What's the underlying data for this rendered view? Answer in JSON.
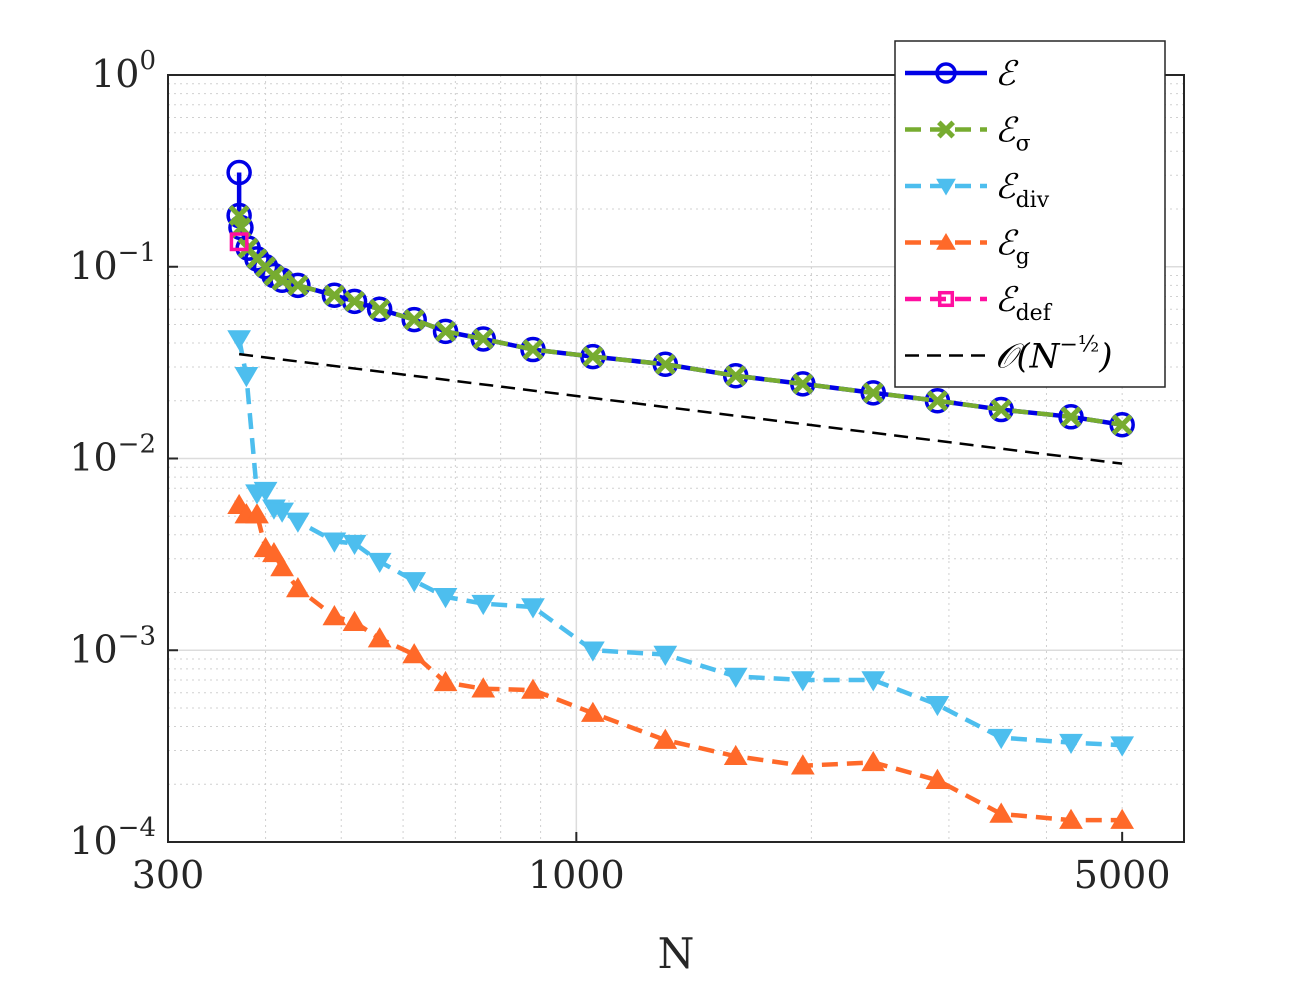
{
  "chart_data": {
    "type": "line",
    "xscale": "log",
    "yscale": "log",
    "xlabel": "N",
    "ylabel": "",
    "xlim": [
      300,
      6000
    ],
    "ylim": [
      0.0001,
      1
    ],
    "grid": true,
    "legend_position": "top-right",
    "x_ticks": [
      {
        "value": 300,
        "label": "300"
      },
      {
        "value": 1000,
        "label": "1000"
      },
      {
        "value": 5000,
        "label": "5000"
      }
    ],
    "y_ticks": [
      {
        "value": 1,
        "base": "10",
        "exp": "0"
      },
      {
        "value": 0.1,
        "base": "10",
        "exp": "−1"
      },
      {
        "value": 0.01,
        "base": "10",
        "exp": "−2"
      },
      {
        "value": 0.001,
        "base": "10",
        "exp": "−3"
      },
      {
        "value": 0.0001,
        "base": "10",
        "exp": "−4"
      }
    ],
    "series": [
      {
        "name": "ℰ",
        "sub": "",
        "color": "#0000e6",
        "dash": "solid",
        "marker": "circle",
        "x": [
          370,
          370,
          372,
          380,
          390,
          400,
          410,
          420,
          440,
          490,
          520,
          560,
          620,
          680,
          760,
          880,
          1050,
          1300,
          1600,
          1950,
          2400,
          2900,
          3500,
          4300,
          5000
        ],
        "y": [
          0.31,
          0.185,
          0.16,
          0.125,
          0.11,
          0.1,
          0.09,
          0.085,
          0.08,
          0.071,
          0.066,
          0.06,
          0.053,
          0.046,
          0.042,
          0.037,
          0.034,
          0.031,
          0.027,
          0.0245,
          0.022,
          0.02,
          0.018,
          0.0165,
          0.015
        ]
      },
      {
        "name": "ℰ",
        "sub": "σ",
        "color": "#77ac30",
        "dash": "dashed",
        "marker": "x",
        "x": [
          370,
          372,
          380,
          390,
          400,
          410,
          420,
          440,
          490,
          520,
          560,
          620,
          680,
          760,
          880,
          1050,
          1300,
          1600,
          1950,
          2400,
          2900,
          3500,
          4300,
          5000
        ],
        "y": [
          0.185,
          0.16,
          0.125,
          0.11,
          0.1,
          0.09,
          0.085,
          0.08,
          0.071,
          0.066,
          0.06,
          0.053,
          0.046,
          0.042,
          0.037,
          0.034,
          0.031,
          0.027,
          0.0245,
          0.022,
          0.02,
          0.018,
          0.0165,
          0.015
        ]
      },
      {
        "name": "ℰ",
        "sub": "div",
        "color": "#4dbeee",
        "dash": "dashed",
        "marker": "triangle-down",
        "x": [
          370,
          378,
          390,
          400,
          410,
          420,
          440,
          490,
          520,
          560,
          620,
          680,
          760,
          880,
          1050,
          1300,
          1600,
          1950,
          2400,
          2900,
          3500,
          4300,
          5000
        ],
        "y": [
          0.042,
          0.027,
          0.0066,
          0.0068,
          0.0055,
          0.0053,
          0.0047,
          0.0037,
          0.0036,
          0.0029,
          0.0023,
          0.0019,
          0.00175,
          0.00168,
          0.001,
          0.00095,
          0.00073,
          0.0007,
          0.0007,
          0.00052,
          0.00035,
          0.00033,
          0.00032
        ]
      },
      {
        "name": "ℰ",
        "sub": "g",
        "color": "#ff6929",
        "dash": "dashed",
        "marker": "triangle-up",
        "x": [
          370,
          378,
          390,
          400,
          410,
          420,
          440,
          490,
          520,
          560,
          620,
          680,
          760,
          880,
          1050,
          1300,
          1600,
          1950,
          2400,
          2900,
          3500,
          4300,
          5000
        ],
        "y": [
          0.0057,
          0.0051,
          0.0051,
          0.0034,
          0.0032,
          0.0027,
          0.0021,
          0.0015,
          0.0014,
          0.00115,
          0.00095,
          0.00068,
          0.00063,
          0.00062,
          0.00047,
          0.00034,
          0.00028,
          0.00025,
          0.00026,
          0.00021,
          0.00014,
          0.00013,
          0.00013
        ]
      },
      {
        "name": "ℰ",
        "sub": "def",
        "color": "#ff0fa0",
        "dash": "dashed",
        "marker": "square",
        "x": [
          370
        ],
        "y": [
          0.135
        ]
      },
      {
        "name": "𝒪(N^−½)",
        "sub": "",
        "color": "#000000",
        "dash": "dashed",
        "marker": "none",
        "x": [
          370,
          5000
        ],
        "y": [
          0.035,
          0.0094
        ]
      }
    ]
  },
  "legend": {
    "entries": [
      {
        "main": "ℰ",
        "sub": ""
      },
      {
        "main": "ℰ",
        "sub": "σ"
      },
      {
        "main": "ℰ",
        "sub": "div"
      },
      {
        "main": "ℰ",
        "sub": "g"
      },
      {
        "main": "ℰ",
        "sub": "def"
      },
      {
        "main": "𝒪(N",
        "sup": "−½",
        "tail": ")"
      }
    ]
  }
}
